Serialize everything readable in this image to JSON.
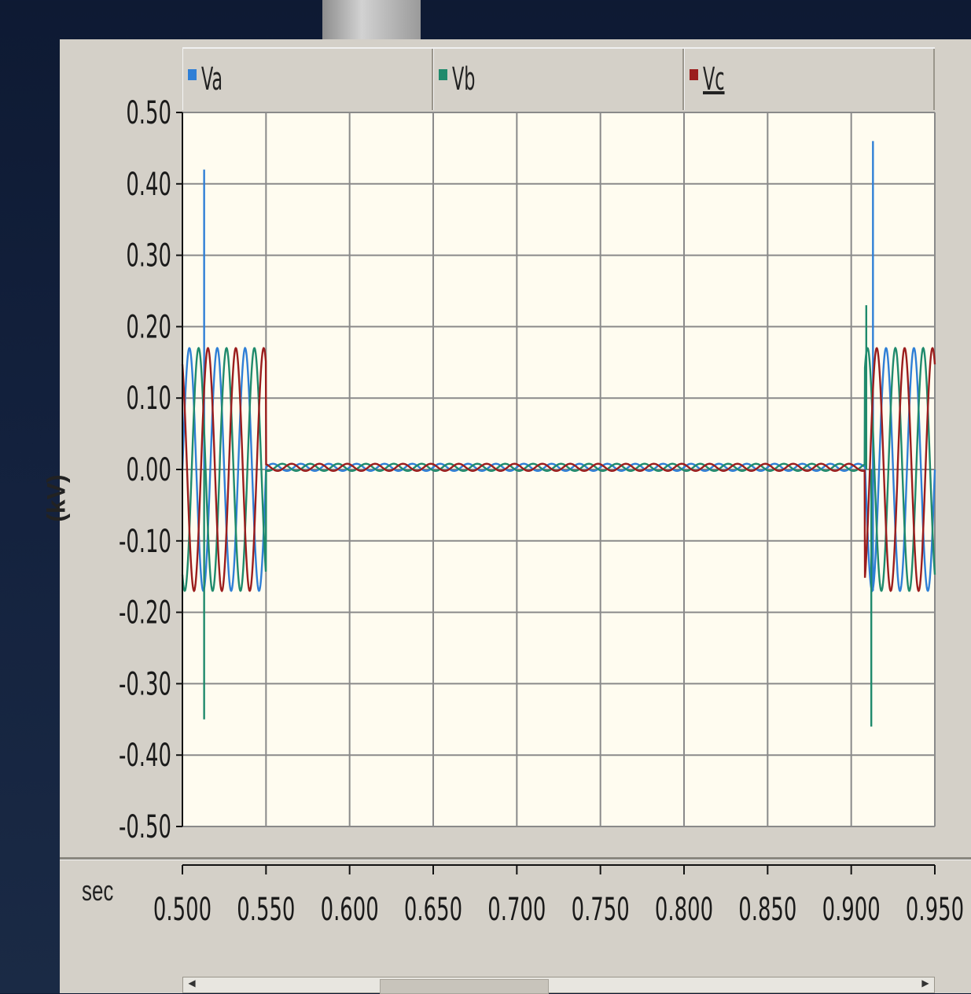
{
  "legend": [
    {
      "label": "Va",
      "color": "#2f7fd6"
    },
    {
      "label": "Vb",
      "color": "#1f8a6c"
    },
    {
      "label": "Vc",
      "color": "#9b1d1d"
    }
  ],
  "y_axis_label": "(kV)",
  "x_axis_unit": "sec",
  "chart_data": {
    "type": "line",
    "ylabel": "(kV)",
    "xlabel": "sec",
    "xlim": [
      0.5,
      0.95
    ],
    "ylim": [
      -0.5,
      0.5
    ],
    "x_ticks": [
      "0.500",
      "0.550",
      "0.600",
      "0.650",
      "0.700",
      "0.750",
      "0.800",
      "0.850",
      "0.900",
      "0.950"
    ],
    "y_ticks": [
      "0.50",
      "0.40",
      "0.30",
      "0.20",
      "0.10",
      "0.00",
      "-0.10",
      "-0.20",
      "-0.30",
      "-0.40",
      "-0.50"
    ],
    "grid": true,
    "legend_placement": "top",
    "series": [
      {
        "name": "Va",
        "color": "#2f7fd6",
        "amplitude_kV": 0.17,
        "sag_amplitude_kV": 0.005,
        "phase_deg": 0,
        "spikes": [
          {
            "x": 0.513,
            "y": 0.42
          },
          {
            "x": 0.913,
            "y": 0.46
          },
          {
            "x": 0.913,
            "y": -0.17
          }
        ]
      },
      {
        "name": "Vb",
        "color": "#1f8a6c",
        "amplitude_kV": 0.17,
        "sag_amplitude_kV": 0.005,
        "phase_deg": -120,
        "spikes": [
          {
            "x": 0.513,
            "y": -0.35
          },
          {
            "x": 0.912,
            "y": -0.36
          },
          {
            "x": 0.909,
            "y": 0.23
          }
        ]
      },
      {
        "name": "Vc",
        "color": "#9b1d1d",
        "amplitude_kV": 0.17,
        "sag_amplitude_kV": 0.005,
        "phase_deg": 120,
        "spikes": []
      }
    ],
    "events": {
      "sag_start": 0.55,
      "sag_end": 0.908
    },
    "frequency_hz": 60
  }
}
